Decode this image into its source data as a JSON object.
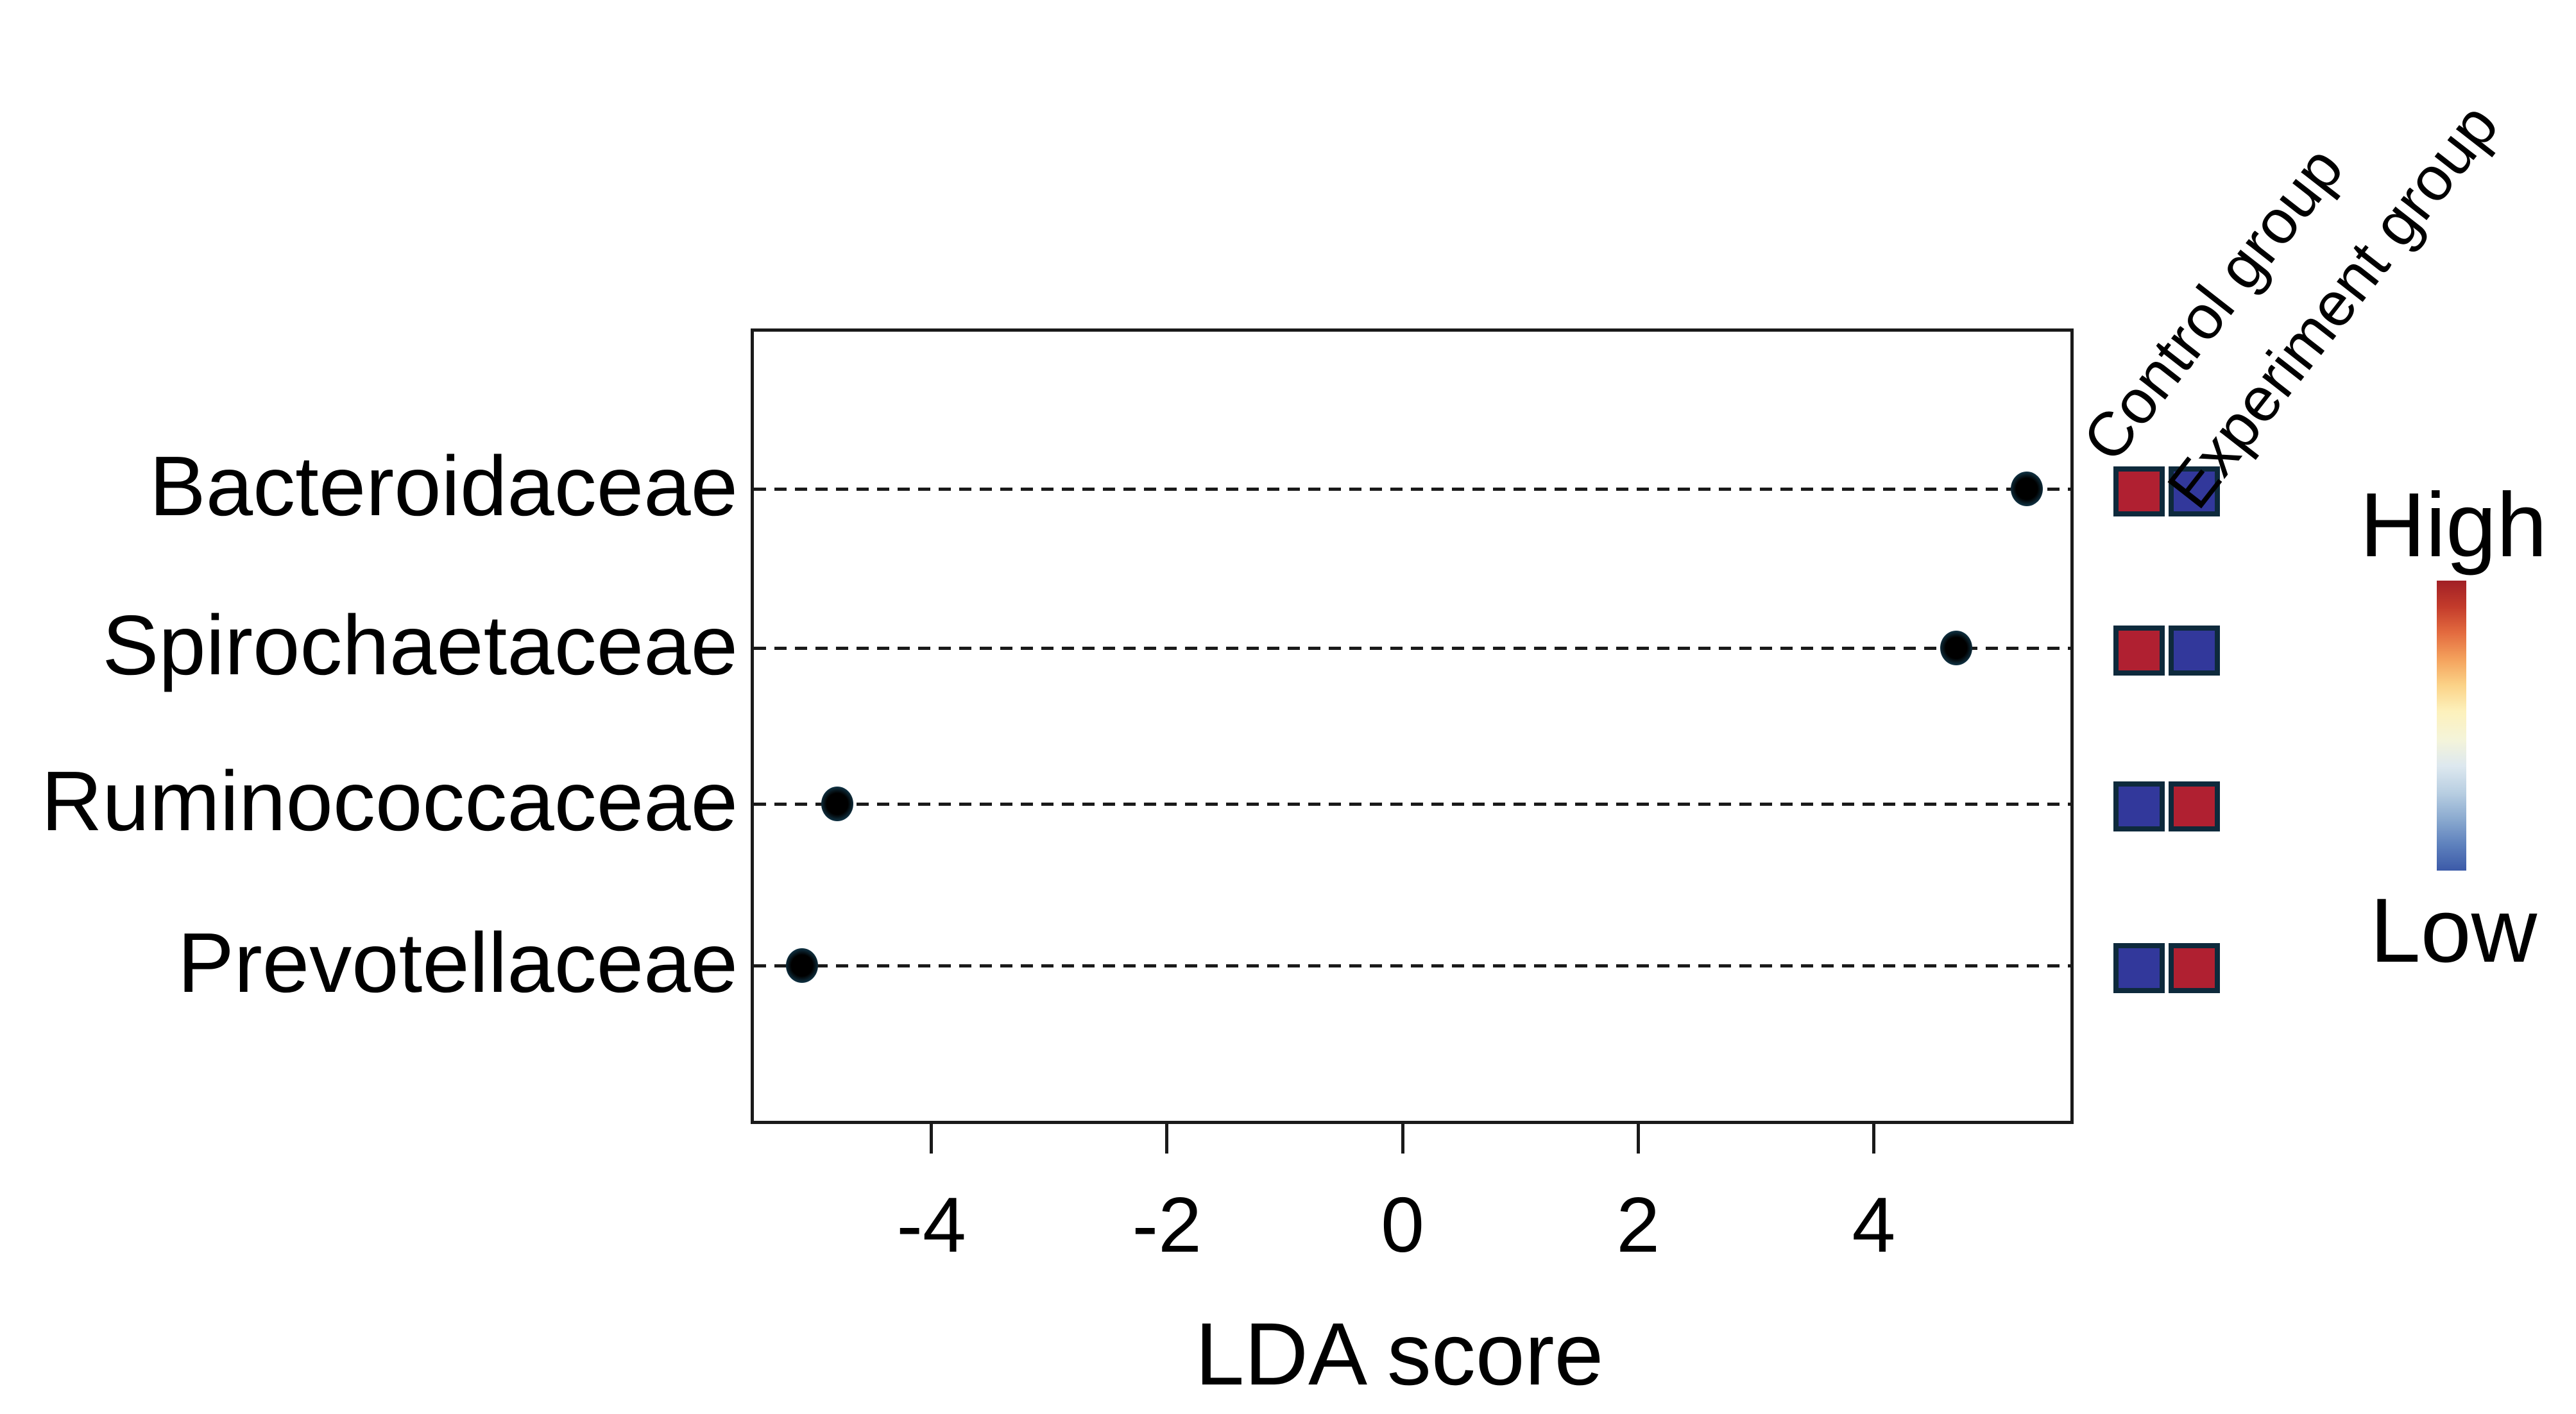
{
  "chart_data": {
    "type": "scatter",
    "title": "",
    "xlabel": "LDA score",
    "xlim": [
      -5.5,
      5.7
    ],
    "x_ticks": [
      -4,
      -2,
      0,
      2,
      4
    ],
    "grid": "horizontal-dashed",
    "marker": "filled-circle",
    "categories": [
      "Bacteroidaceae",
      "Spirochaetaceae",
      "Ruminococcaceae",
      "Prevotellaceae"
    ],
    "lda_scores": [
      5.3,
      4.7,
      -4.8,
      -5.1
    ],
    "heatmap": {
      "columns": [
        "Control group",
        "Experiment group"
      ],
      "values": [
        [
          "high",
          "low"
        ],
        [
          "high",
          "low"
        ],
        [
          "low",
          "high"
        ],
        [
          "low",
          "high"
        ]
      ]
    },
    "colorbar": {
      "high_label": "High",
      "low_label": "Low",
      "orientation": "vertical",
      "colormap": "RdYlBu"
    },
    "colors": {
      "high_cell": "#b02031",
      "low_cell": "#32389b",
      "cell_border": "#0e2a3c",
      "dot_ring": "#0f2f3f",
      "dot_core": "#000000",
      "axis": "#1a1a1a",
      "gradient_stops": [
        "#a12026",
        "#c33b2b",
        "#e36b3f",
        "#f4a15c",
        "#fbd287",
        "#fdf1bb",
        "#f4f4da",
        "#dde8ef",
        "#b9cfe2",
        "#8cabd0",
        "#5e81bd",
        "#3c5aa8"
      ]
    }
  }
}
